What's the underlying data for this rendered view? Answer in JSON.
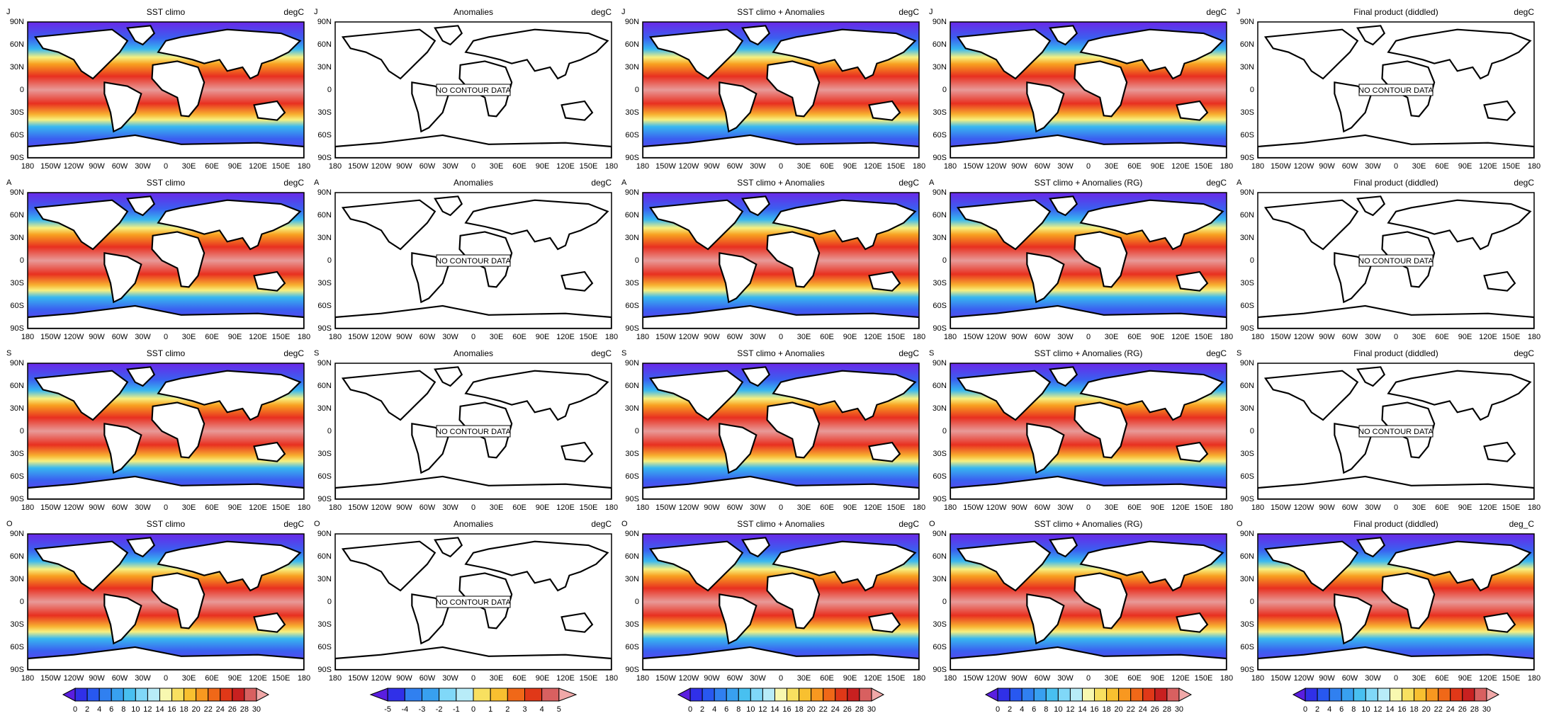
{
  "lat_labels": [
    "90N",
    "60N",
    "30N",
    "0",
    "30S",
    "60S",
    "90S"
  ],
  "lon_labels": [
    "180",
    "150W",
    "120W",
    "90W",
    "60W",
    "30W",
    "0",
    "30E",
    "60E",
    "90E",
    "120E",
    "150E",
    "180"
  ],
  "rows": [
    {
      "label": "J",
      "panels": [
        {
          "title": "SST climo",
          "units": "degC",
          "shaded": true
        },
        {
          "title": "Anomalies",
          "units": "degC",
          "shaded": false,
          "notice": "NO CONTOUR DATA"
        },
        {
          "title": "SST climo + Anomalies",
          "units": "degC",
          "shaded": true
        },
        {
          "units": "degC",
          "shaded": true
        },
        {
          "title": "Final product (diddled)",
          "units": "degC",
          "shaded": false,
          "notice": "NO CONTOUR DATA"
        }
      ]
    },
    {
      "label": "A",
      "panels": [
        {
          "title": "SST climo",
          "units": "degC",
          "shaded": true
        },
        {
          "title": "Anomalies",
          "units": "degC",
          "shaded": false,
          "notice": "NO CONTOUR DATA"
        },
        {
          "title": "SST climo + Anomalies",
          "units": "degC",
          "shaded": true
        },
        {
          "title": "SST climo + Anomalies (RG)",
          "units": "degC",
          "shaded": true
        },
        {
          "title": "Final product (diddled)",
          "units": "degC",
          "shaded": false,
          "notice": "NO CONTOUR DATA"
        }
      ]
    },
    {
      "label": "S",
      "panels": [
        {
          "title": "SST climo",
          "units": "degC",
          "shaded": true
        },
        {
          "title": "Anomalies",
          "units": "degC",
          "shaded": false,
          "notice": "NO CONTOUR DATA"
        },
        {
          "title": "SST climo + Anomalies",
          "units": "degC",
          "shaded": true
        },
        {
          "title": "SST climo + Anomalies (RG)",
          "units": "degC",
          "shaded": true
        },
        {
          "title": "Final product (diddled)",
          "units": "degC",
          "shaded": false,
          "notice": "NO CONTOUR DATA"
        }
      ]
    },
    {
      "label": "O",
      "panels": [
        {
          "title": "SST climo",
          "units": "degC",
          "shaded": true
        },
        {
          "title": "Anomalies",
          "units": "degC",
          "shaded": false,
          "notice": "NO CONTOUR DATA"
        },
        {
          "title": "SST climo + Anomalies",
          "units": "degC",
          "shaded": true
        },
        {
          "title": "SST climo + Anomalies (RG)",
          "shaded": true
        },
        {
          "title": "Final product (diddled)",
          "units": "deg_C",
          "shaded": true
        }
      ]
    }
  ],
  "colorbars": [
    {
      "labels": [
        0,
        2,
        4,
        6,
        8,
        10,
        12,
        14,
        16,
        18,
        20,
        22,
        24,
        26,
        28,
        30
      ]
    },
    {
      "labels": [
        -5,
        -4,
        -3,
        -2,
        -1,
        0,
        1,
        2,
        3,
        4,
        5
      ]
    },
    {
      "labels": [
        0,
        2,
        4,
        6,
        8,
        10,
        12,
        14,
        16,
        18,
        20,
        22,
        24,
        26,
        28,
        30
      ]
    },
    {
      "labels": [
        0,
        2,
        4,
        6,
        8,
        10,
        12,
        14,
        16,
        18,
        20,
        22,
        24,
        26,
        28,
        30
      ]
    },
    {
      "labels": [
        0,
        2,
        4,
        6,
        8,
        10,
        12,
        14,
        16,
        18,
        20,
        22,
        24,
        26,
        28,
        30
      ]
    }
  ]
}
